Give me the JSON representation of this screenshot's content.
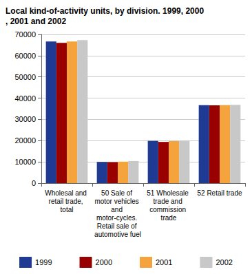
{
  "chart_data": {
    "type": "bar",
    "title": "Local kind-of-activity units, by division. 1999, 2000, 2001 and 2002",
    "categories": [
      "Wholesal and retail trade, total",
      "50 Sale of motor vehicles and motor-cycles. Retail sale of automotive fuel",
      "51 Wholesale trade and commission trade",
      "52 Retail trade"
    ],
    "series": [
      {
        "name": "1999",
        "color": "#1f3a93",
        "values": [
          66700,
          10000,
          19900,
          36700
        ]
      },
      {
        "name": "2000",
        "color": "#990000",
        "values": [
          66000,
          9900,
          19400,
          36600
        ]
      },
      {
        "name": "2001",
        "color": "#f5a33c",
        "values": [
          66700,
          10100,
          19800,
          36700
        ]
      },
      {
        "name": "2002",
        "color": "#c8c8c8",
        "values": [
          67300,
          10400,
          19900,
          36900
        ]
      }
    ],
    "ylim": [
      0,
      70000
    ],
    "yticks": [
      0,
      10000,
      20000,
      30000,
      40000,
      50000,
      60000,
      70000
    ],
    "grid": true,
    "legend": "bottom"
  }
}
